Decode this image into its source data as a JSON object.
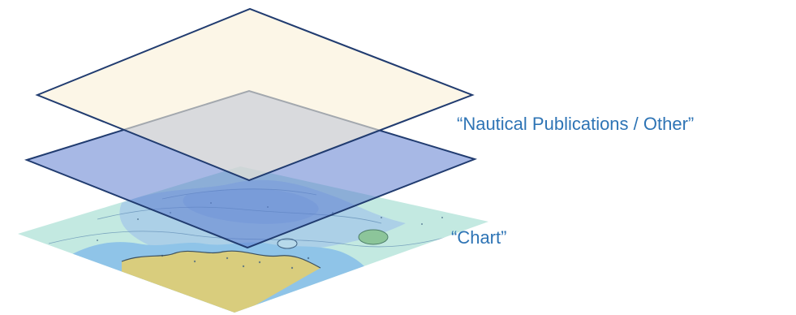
{
  "labels": {
    "top_layer": "“Nautical Publications / Other”",
    "bottom_layer": "“Chart”"
  },
  "colors": {
    "label_text": "#2e74b5",
    "top_layer_fill": "#fbf4e3",
    "top_layer_stroke": "#213c70",
    "middle_layer_fill": "#5f7ed0",
    "middle_layer_stroke": "#213c70",
    "chart_water": "#bfe6df",
    "chart_deep_water": "#a9cde9",
    "chart_land": "#d9cd7d"
  }
}
